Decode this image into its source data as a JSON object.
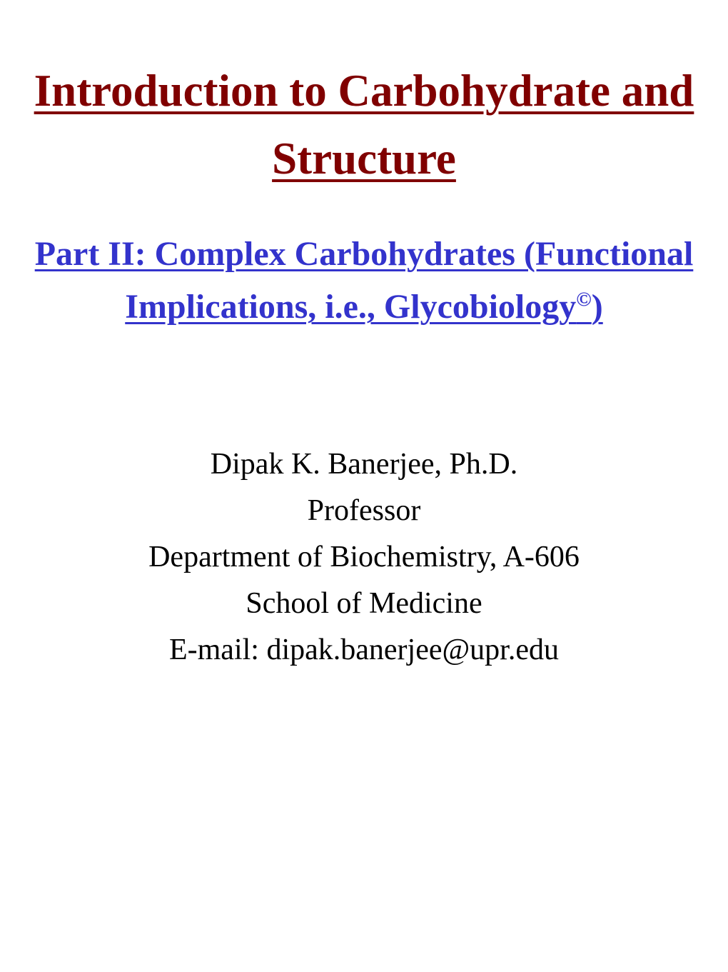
{
  "title": {
    "text": "Introduction to Carbohydrate and Structure",
    "color": "#800000",
    "fontsize": 63,
    "underline": true,
    "bold": true
  },
  "subtitle": {
    "prefix": "Part II: Complex Carbohydrates (Functional Implications, i.e., Glycobiology",
    "superscript": "©",
    "suffix": ")",
    "color": "#3333cc",
    "fontsize": 48,
    "underline": true,
    "bold": true
  },
  "author": {
    "name": "Dipak K. Banerjee, Ph.D.",
    "title": "Professor",
    "department": "Department of Biochemistry, A-606",
    "school": "School of Medicine",
    "email_label": "E-mail: dipak.banerjee@upr.edu",
    "color": "#000000",
    "fontsize": 42
  },
  "background_color": "#ffffff"
}
